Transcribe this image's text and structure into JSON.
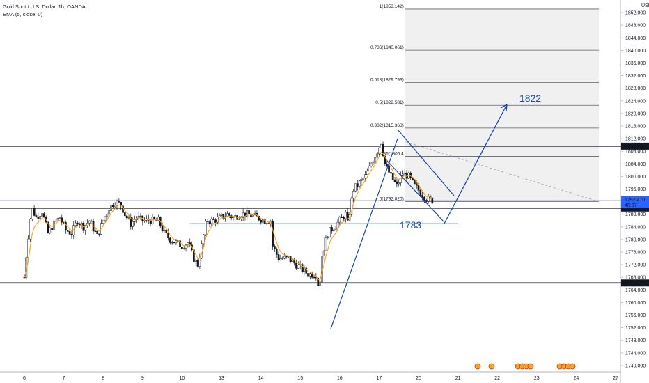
{
  "legend": {
    "title": "Gold Spot / U.S. Dollar, 1h, OANDA",
    "indicator": "EMA (5, close, 0)"
  },
  "colors": {
    "bull": "#26a69a",
    "bear": "#ef5350",
    "candle_body": "#131722",
    "ema": "#f7a21b",
    "trend": "#1848a0",
    "level_line": "#131722",
    "fib_line": "#5d606b",
    "fib_box": "#f0f0f0"
  },
  "chart_data": {
    "type": "candlestick",
    "title": "Gold Spot / U.S. Dollar, 1h, OANDA",
    "currency": "USD",
    "y_range": [
      1738,
      1856
    ],
    "y_ticks": [
      1740,
      1744,
      1748,
      1752,
      1756,
      1760,
      1764,
      1768,
      1772,
      1776,
      1780,
      1784,
      1788,
      1792,
      1796,
      1800,
      1804,
      1808,
      1812,
      1816,
      1820,
      1824,
      1828,
      1832,
      1836,
      1840,
      1844,
      1848,
      1852
    ],
    "y_tick_labels": [
      "1740.000",
      "1744.000",
      "1748.000",
      "1752.000",
      "1756.000",
      "1760.000",
      "1764.000",
      "1768.000",
      "1772.000",
      "1776.000",
      "1780.000",
      "1784.000",
      "1788.000",
      "1792.000",
      "1796.000",
      "1800.000",
      "1804.000",
      "1808.000",
      "1812.000",
      "1816.000",
      "1820.000",
      "1824.000",
      "1828.000",
      "1832.000",
      "1836.000",
      "1840.000",
      "1844.000",
      "1848.000",
      "1852.000"
    ],
    "x_labels": [
      {
        "label": "6",
        "day": 0
      },
      {
        "label": "7",
        "day": 1
      },
      {
        "label": "8",
        "day": 2
      },
      {
        "label": "9",
        "day": 3
      },
      {
        "label": "10",
        "day": 4
      },
      {
        "label": "13",
        "day": 5
      },
      {
        "label": "14",
        "day": 6
      },
      {
        "label": "15",
        "day": 7
      },
      {
        "label": "16",
        "day": 8
      },
      {
        "label": "17",
        "day": 9
      },
      {
        "label": "20",
        "day": 10
      },
      {
        "label": "21",
        "day": 11
      },
      {
        "label": "22",
        "day": 12
      },
      {
        "label": "23",
        "day": 13
      },
      {
        "label": "24",
        "day": 14
      },
      {
        "label": "27",
        "day": 15
      }
    ],
    "path_points": [
      [
        0.0,
        1768
      ],
      [
        0.08,
        1779
      ],
      [
        0.18,
        1790
      ],
      [
        0.3,
        1787
      ],
      [
        0.45,
        1789
      ],
      [
        0.6,
        1782
      ],
      [
        0.75,
        1785
      ],
      [
        0.9,
        1787
      ],
      [
        1.05,
        1783
      ],
      [
        1.2,
        1782
      ],
      [
        1.35,
        1786
      ],
      [
        1.5,
        1784
      ],
      [
        1.65,
        1786
      ],
      [
        1.85,
        1781
      ],
      [
        2.0,
        1786
      ],
      [
        2.15,
        1790
      ],
      [
        2.3,
        1792
      ],
      [
        2.45,
        1791
      ],
      [
        2.55,
        1788
      ],
      [
        2.7,
        1785
      ],
      [
        2.85,
        1787
      ],
      [
        3.0,
        1786
      ],
      [
        3.2,
        1786
      ],
      [
        3.4,
        1786
      ],
      [
        3.55,
        1782
      ],
      [
        3.7,
        1780
      ],
      [
        3.85,
        1779
      ],
      [
        4.0,
        1778
      ],
      [
        4.15,
        1779
      ],
      [
        4.3,
        1774
      ],
      [
        4.4,
        1772
      ],
      [
        4.5,
        1778
      ],
      [
        4.62,
        1786
      ],
      [
        4.8,
        1786
      ],
      [
        5.0,
        1787
      ],
      [
        5.15,
        1788
      ],
      [
        5.3,
        1787
      ],
      [
        5.5,
        1788
      ],
      [
        5.7,
        1788
      ],
      [
        5.9,
        1787
      ],
      [
        6.1,
        1786
      ],
      [
        6.25,
        1786
      ],
      [
        6.3,
        1778
      ],
      [
        6.45,
        1774
      ],
      [
        6.7,
        1774
      ],
      [
        7.0,
        1771
      ],
      [
        7.2,
        1769
      ],
      [
        7.4,
        1769
      ],
      [
        7.48,
        1764
      ],
      [
        7.55,
        1775
      ],
      [
        7.7,
        1782
      ],
      [
        7.85,
        1784
      ],
      [
        8.0,
        1786
      ],
      [
        8.15,
        1788
      ],
      [
        8.2,
        1785
      ],
      [
        8.35,
        1796
      ],
      [
        8.5,
        1798
      ],
      [
        8.65,
        1800
      ],
      [
        8.8,
        1804
      ],
      [
        8.95,
        1808
      ],
      [
        9.05,
        1811
      ],
      [
        9.15,
        1804
      ],
      [
        9.3,
        1800
      ],
      [
        9.45,
        1797
      ],
      [
        9.6,
        1801
      ],
      [
        9.75,
        1800
      ],
      [
        9.9,
        1797
      ],
      [
        10.05,
        1795
      ],
      [
        10.2,
        1793
      ],
      [
        10.35,
        1792.4
      ]
    ],
    "levels": [
      {
        "price": 1809.621,
        "label": "1809.621"
      },
      {
        "price": 1789.97,
        "label": "1789.970"
      },
      {
        "price": 1766.221,
        "label": "1766.221"
      }
    ],
    "current_price": {
      "price": 1792.41,
      "label": "1792.410",
      "countdown": "48:07"
    },
    "fibonacci": [
      {
        "ratio": "1",
        "price": 1853.142,
        "label": "1(1853.142)"
      },
      {
        "ratio": "0.786",
        "price": 1840.061,
        "label": "0.786(1840.061)"
      },
      {
        "ratio": "0.618",
        "price": 1829.793,
        "label": "0.618(1829.793)"
      },
      {
        "ratio": "0.5",
        "price": 1822.581,
        "label": "0.5(1822.581)"
      },
      {
        "ratio": "0.382",
        "price": 1815.368,
        "label": "0.382(1815.368)"
      },
      {
        "ratio": "0.236",
        "price": 1806.4,
        "label": "0.236(1806.4"
      },
      {
        "ratio": "0",
        "price": 1792.02,
        "label": "0(1792.020)"
      }
    ],
    "annotations": [
      {
        "text": "1822",
        "price": 1822
      },
      {
        "text": "1783",
        "price": 1785
      }
    ]
  }
}
